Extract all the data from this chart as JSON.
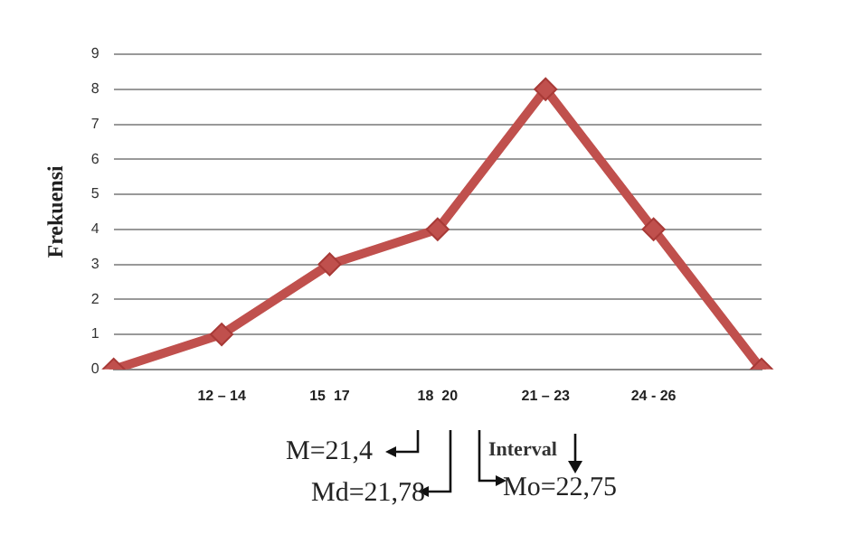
{
  "chart_data": {
    "type": "line",
    "ylabel": "Frekuensi",
    "xlabel": "Interval",
    "categories": [
      null,
      "12 – 14",
      "15  17",
      "18  20",
      "21 – 23",
      "24 - 26",
      null
    ],
    "series": [
      {
        "color": "#c0504d",
        "values": [
          0,
          1,
          3,
          4,
          8,
          4,
          0
        ]
      }
    ],
    "ylim": [
      0,
      9
    ],
    "yticks": [
      0,
      1,
      2,
      3,
      4,
      5,
      6,
      7,
      8,
      9
    ],
    "grid": "y",
    "marker": "diamond",
    "line_style": "solid",
    "legend": false,
    "annotations": [
      "M=21,4",
      "Md=21,78",
      "Mo=22,75"
    ]
  }
}
